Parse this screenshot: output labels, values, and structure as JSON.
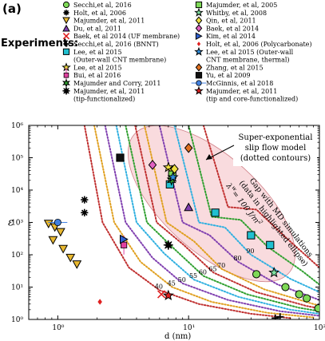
{
  "panel_label": "(a)",
  "legend_title": "Experiments:",
  "legend": [
    {
      "label": "Secchi,et al, 2016",
      "marker": "circle",
      "color": "#7ed957",
      "col": 0,
      "row": 0
    },
    {
      "label": "Holt, et al, 2006",
      "marker": "asterisk",
      "color": "#000000",
      "col": 0,
      "row": 1
    },
    {
      "label": "Majumder, et al, 2011",
      "marker": "triangle-down",
      "color": "#e8b830",
      "col": 0,
      "row": 2
    },
    {
      "label": "Du, et al, 2011",
      "marker": "triangle-up",
      "color": "#8040b0",
      "col": 0,
      "row": 3
    },
    {
      "label": "Baek, et al 2014 (UF membrane)",
      "marker": "x",
      "color": "#e02020",
      "col": 0,
      "row": 4
    },
    {
      "label": "Secchi,et al, 2016 (BNNT)",
      "marker": "plus",
      "color": "#000000",
      "col": 0,
      "row": 5
    },
    {
      "label": "Lee, et al 2015",
      "marker": "square",
      "color": "#20c0d0",
      "col": 0,
      "row": 6
    },
    {
      "label": "(Outer-wall CNT membrane)",
      "marker": "none",
      "color": "#000000",
      "col": 0,
      "row": 7
    },
    {
      "label": "Lee, et al 2015",
      "marker": "star",
      "color": "#f0e040",
      "col": 0,
      "row": 8
    },
    {
      "label": "Bui, et al 2016",
      "marker": "errorbar-square",
      "color": "#e040a0",
      "col": 0,
      "row": 9
    },
    {
      "label": "Majumder and Corry, 2011",
      "marker": "star6",
      "color": "#30a030",
      "col": 0,
      "row": 10
    },
    {
      "label": "Majumder, et al, 2011",
      "marker": "star8",
      "color": "#000000",
      "col": 0,
      "row": 11
    },
    {
      "label": "(tip-functionalized)",
      "marker": "none",
      "color": "#000000",
      "col": 0,
      "row": 12
    },
    {
      "label": "Majumder, et al, 2005",
      "marker": "square",
      "color": "#7ed957",
      "col": 1,
      "row": 0
    },
    {
      "label": "Whitby, et al, 2008",
      "marker": "star",
      "color": "#80e0a0",
      "col": 1,
      "row": 1
    },
    {
      "label": "Qin, et al, 2011",
      "marker": "diamond",
      "color": "#f0e040",
      "col": 1,
      "row": 2
    },
    {
      "label": "Baek, et al 2014",
      "marker": "diamond",
      "color": "#e060c0",
      "col": 1,
      "row": 3
    },
    {
      "label": "Kim, et al 2014",
      "marker": "triangle-right",
      "color": "#3060d0",
      "col": 1,
      "row": 4
    },
    {
      "label": "Holt, et al, 2006 (Polycarbonate)",
      "marker": "diamond-small",
      "color": "#e02020",
      "col": 1,
      "row": 5
    },
    {
      "label": "Lee, et al 2015 (Outer-wall",
      "marker": "star",
      "color": "#3090e0",
      "col": 1,
      "row": 6
    },
    {
      "label": "CNT membrane, thermal)",
      "marker": "none",
      "color": "#000000",
      "col": 1,
      "row": 7
    },
    {
      "label": "Zhang, et al 2015",
      "marker": "diamond",
      "color": "#e07020",
      "col": 1,
      "row": 8
    },
    {
      "label": "Yu, et al 2009",
      "marker": "square",
      "color": "#101010",
      "col": 1,
      "row": 9
    },
    {
      "label": "McGinnis, et al 2018",
      "marker": "errorbar-circle",
      "color": "#4080e0",
      "col": 1,
      "row": 10
    },
    {
      "label": "Majumder, et al, 2011",
      "marker": "star",
      "color": "#e02020",
      "col": 1,
      "row": 11
    },
    {
      "label": "(tip and core-functionalized)",
      "marker": "none",
      "color": "#000000",
      "col": 1,
      "row": 12
    }
  ],
  "annotations": {
    "model_line1": "Super-exponential",
    "model_line2": "slip flow model",
    "model_line3": "(dotted contours)",
    "gap_line1": "Gap with MD simulations",
    "gap_line2": "(data in highlighted ellipse)",
    "kappa": "λ",
    "kappa_sup": "w",
    "kappa_rest": "= 100 J/m",
    "kappa_sup2": "2"
  },
  "chart_data": {
    "type": "scatter",
    "xlabel": "d (nm)",
    "ylabel": "ε",
    "xscale": "log",
    "yscale": "log",
    "xlim": [
      0.6,
      100
    ],
    "ylim": [
      1,
      1000000
    ],
    "x_ticks": [
      1,
      10,
      100
    ],
    "y_ticks": [
      1,
      10,
      100,
      1000,
      10000,
      100000,
      1000000
    ],
    "x_tick_labels": [
      "10⁰",
      "10¹",
      "10²"
    ],
    "y_tick_labels": [
      "10⁰",
      "10¹",
      "10²",
      "10³",
      "10⁴",
      "10⁵",
      "10⁶"
    ],
    "contours": [
      {
        "label": "40",
        "color": "#c03030",
        "pts": [
          [
            1.6,
            1000000
          ],
          [
            2.2,
            1000
          ],
          [
            3.5,
            40
          ],
          [
            6,
            8
          ],
          [
            12,
            3
          ],
          [
            30,
            1.5
          ],
          [
            60,
            1.1
          ]
        ]
      },
      {
        "label": "45",
        "color": "#e0a020",
        "pts": [
          [
            1.9,
            1000000
          ],
          [
            2.7,
            1000
          ],
          [
            4.3,
            60
          ],
          [
            7.5,
            10
          ],
          [
            15,
            3.5
          ],
          [
            40,
            1.6
          ],
          [
            90,
            1.15
          ]
        ]
      },
      {
        "label": "50",
        "color": "#8040b0",
        "pts": [
          [
            2.3,
            1000000
          ],
          [
            3.3,
            1000
          ],
          [
            5.3,
            80
          ],
          [
            9,
            13
          ],
          [
            20,
            4
          ],
          [
            50,
            1.8
          ],
          [
            100,
            1.3
          ]
        ]
      },
      {
        "label": "55",
        "color": "#30b0e0",
        "pts": [
          [
            2.8,
            1000000
          ],
          [
            4,
            1000
          ],
          [
            6.5,
            110
          ],
          [
            11,
            17
          ],
          [
            24,
            5
          ],
          [
            60,
            2
          ],
          [
            100,
            1.5
          ]
        ]
      },
      {
        "label": "60",
        "color": "#30a030",
        "pts": [
          [
            3.3,
            1000000
          ],
          [
            4.8,
            1000
          ],
          [
            7.8,
            150
          ],
          [
            13,
            22
          ],
          [
            28,
            6
          ],
          [
            70,
            2.3
          ],
          [
            100,
            1.8
          ]
        ]
      },
      {
        "label": "65",
        "color": "#c03030",
        "pts": [
          [
            3.9,
            1000000
          ],
          [
            5.7,
            1000
          ],
          [
            9.2,
            200
          ],
          [
            15.5,
            28
          ],
          [
            33,
            7
          ],
          [
            80,
            2.6
          ],
          [
            100,
            2.2
          ]
        ]
      },
      {
        "label": "70",
        "color": "#e0a020",
        "pts": [
          [
            4.6,
            1000000
          ],
          [
            6.8,
            1000
          ],
          [
            11,
            260
          ],
          [
            18,
            36
          ],
          [
            38,
            8.5
          ],
          [
            90,
            3
          ],
          [
            100,
            2.7
          ]
        ]
      },
      {
        "label": "80",
        "color": "#8040b0",
        "pts": [
          [
            6,
            1000000
          ],
          [
            9,
            1000
          ],
          [
            14.5,
            400
          ],
          [
            24,
            60
          ],
          [
            48,
            12
          ],
          [
            100,
            4
          ]
        ]
      },
      {
        "label": "90",
        "color": "#30b0e0",
        "pts": [
          [
            7.8,
            1000000
          ],
          [
            12,
            1000
          ],
          [
            19,
            700
          ],
          [
            30,
            100
          ],
          [
            60,
            18
          ],
          [
            100,
            7
          ]
        ]
      },
      {
        "label": "",
        "color": "#30a030",
        "pts": [
          [
            10,
            1000000
          ],
          [
            15,
            1500
          ],
          [
            25,
            1200
          ],
          [
            40,
            180
          ],
          [
            75,
            30
          ],
          [
            100,
            12
          ]
        ]
      },
      {
        "label": "",
        "color": "#c03030",
        "pts": [
          [
            13,
            1000000
          ],
          [
            20,
            3000
          ],
          [
            33,
            2500
          ],
          [
            55,
            350
          ],
          [
            100,
            40
          ]
        ]
      }
    ],
    "series": [
      {
        "name": "Secchi,et al, 2016",
        "marker": "circle",
        "color": "#7ed957",
        "points": [
          [
            33,
            25
          ],
          [
            55,
            10
          ],
          [
            70,
            6
          ],
          [
            80,
            4.5
          ],
          [
            98,
            2.2
          ]
        ]
      },
      {
        "name": "Holt, et al, 2006",
        "marker": "asterisk",
        "color": "#000000",
        "points": [
          [
            1.6,
            5000
          ],
          [
            1.6,
            2000
          ]
        ]
      },
      {
        "name": "Majumder, et al, 2011",
        "marker": "triangle-down",
        "color": "#e8b830",
        "points": [
          [
            0.85,
            900
          ],
          [
            0.95,
            700
          ],
          [
            1.05,
            500
          ],
          [
            0.92,
            280
          ],
          [
            1.1,
            150
          ],
          [
            1.25,
            80
          ],
          [
            1.4,
            50
          ]
        ]
      },
      {
        "name": "Du, et al, 2011",
        "marker": "triangle-up",
        "color": "#8040b0",
        "points": [
          [
            10,
            3000
          ]
        ]
      },
      {
        "name": "Baek, et al 2014 (UF membrane)",
        "marker": "x",
        "color": "#e02020",
        "points": [
          [
            6.2,
            6
          ]
        ]
      },
      {
        "name": "Secchi,et al, 2016 (BNNT)",
        "marker": "plus",
        "color": "#000000",
        "points": [
          [
            46,
            1.1
          ],
          [
            50,
            1.2
          ]
        ]
      },
      {
        "name": "Lee, et al 2015",
        "marker": "square",
        "color": "#20c0d0",
        "points": [
          [
            7.2,
            15000
          ],
          [
            16,
            2000
          ],
          [
            30,
            400
          ],
          [
            42,
            200
          ]
        ]
      },
      {
        "name": "Lee, et al 2015",
        "marker": "star",
        "color": "#f0e040",
        "points": [
          [
            7,
            50000
          ],
          [
            7.5,
            40000
          ]
        ]
      },
      {
        "name": "Bui, et al 2016",
        "marker": "errorbar-square",
        "color": "#e040a0",
        "points": [
          [
            3.2,
            200
          ]
        ]
      },
      {
        "name": "Majumder and Corry, 2011",
        "marker": "star6",
        "color": "#30a030",
        "points": [
          [
            7.4,
            20000
          ]
        ]
      },
      {
        "name": "Majumder, et al, 2011 (tip-functionalized)",
        "marker": "star8",
        "color": "#000000",
        "points": [
          [
            7,
            200
          ]
        ]
      },
      {
        "name": "Majumder, et al, 2005",
        "marker": "square",
        "color": "#7ed957",
        "points": [
          [
            7.5,
            30000
          ]
        ]
      },
      {
        "name": "Whitby, et al, 2008",
        "marker": "star",
        "color": "#80e0a0",
        "points": [
          [
            45,
            28
          ]
        ]
      },
      {
        "name": "Qin, et al, 2011",
        "marker": "diamond",
        "color": "#f0e040",
        "points": [
          [
            7.8,
            45000
          ]
        ]
      },
      {
        "name": "Baek, et al 2014",
        "marker": "diamond",
        "color": "#e060c0",
        "points": [
          [
            5.3,
            60000
          ]
        ]
      },
      {
        "name": "Kim, et al 2014",
        "marker": "triangle-right",
        "color": "#3060d0",
        "points": [
          [
            3.2,
            300
          ]
        ]
      },
      {
        "name": "Holt, et al, 2006 (Polycarbonate)",
        "marker": "diamond-small",
        "color": "#e02020",
        "points": [
          [
            2.1,
            3.5
          ]
        ]
      },
      {
        "name": "Lee, et al 2015 (Outer-wall CNT membrane, thermal)",
        "marker": "star",
        "color": "#3090e0",
        "points": [
          [
            7.6,
            25000
          ]
        ]
      },
      {
        "name": "Zhang, et al 2015",
        "marker": "diamond",
        "color": "#e07020",
        "points": [
          [
            10,
            200000
          ]
        ]
      },
      {
        "name": "Yu, et al 2009",
        "marker": "square",
        "color": "#101010",
        "points": [
          [
            3,
            100000
          ]
        ]
      },
      {
        "name": "McGinnis, et al 2018",
        "marker": "errorbar-circle",
        "color": "#4080e0",
        "points": [
          [
            1,
            1000
          ]
        ]
      },
      {
        "name": "Majumder, et al, 2011 (tip and core-functionalized)",
        "marker": "star",
        "color": "#e02020",
        "points": [
          [
            7,
            5.5
          ]
        ]
      }
    ]
  }
}
